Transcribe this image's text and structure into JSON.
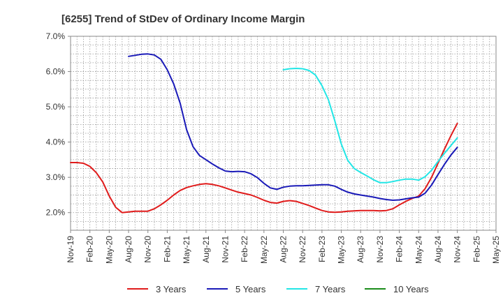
{
  "chart_data": {
    "type": "line",
    "title": "[6255]  Trend of StDev of Ordinary Income Margin",
    "xlabel": "",
    "ylabel": "",
    "x_range": [
      "2019-11",
      "2025-05"
    ],
    "ylim": [
      1.5,
      7.0
    ],
    "y_ticks": [
      "2.0%",
      "3.0%",
      "4.0%",
      "5.0%",
      "6.0%",
      "7.0%"
    ],
    "y_tick_values": [
      2.0,
      3.0,
      4.0,
      5.0,
      6.0,
      7.0
    ],
    "x_ticks": [
      "Nov-19",
      "Feb-20",
      "May-20",
      "Aug-20",
      "Nov-20",
      "Feb-21",
      "May-21",
      "Aug-21",
      "Nov-21",
      "Feb-22",
      "May-22",
      "Aug-22",
      "Nov-22",
      "Feb-23",
      "May-23",
      "Aug-23",
      "Nov-23",
      "Feb-24",
      "May-24",
      "Aug-24",
      "Nov-24",
      "Feb-25",
      "May-25"
    ],
    "grid": true,
    "legend_position": "bottom",
    "series": [
      {
        "name": "3 Years",
        "color": "#e01b1b",
        "points": [
          [
            "2019-11",
            3.42
          ],
          [
            "2019-12",
            3.42
          ],
          [
            "2020-01",
            3.4
          ],
          [
            "2020-02",
            3.31
          ],
          [
            "2020-03",
            3.13
          ],
          [
            "2020-04",
            2.87
          ],
          [
            "2020-05",
            2.47
          ],
          [
            "2020-06",
            2.15
          ],
          [
            "2020-07",
            2.0
          ],
          [
            "2020-08",
            2.02
          ],
          [
            "2020-09",
            2.04
          ],
          [
            "2020-10",
            2.04
          ],
          [
            "2020-11",
            2.04
          ],
          [
            "2020-12",
            2.11
          ],
          [
            "2021-01",
            2.22
          ],
          [
            "2021-02",
            2.35
          ],
          [
            "2021-03",
            2.5
          ],
          [
            "2021-04",
            2.63
          ],
          [
            "2021-05",
            2.71
          ],
          [
            "2021-06",
            2.76
          ],
          [
            "2021-07",
            2.8
          ],
          [
            "2021-08",
            2.82
          ],
          [
            "2021-09",
            2.8
          ],
          [
            "2021-10",
            2.76
          ],
          [
            "2021-11",
            2.7
          ],
          [
            "2021-12",
            2.64
          ],
          [
            "2022-01",
            2.58
          ],
          [
            "2022-02",
            2.54
          ],
          [
            "2022-03",
            2.5
          ],
          [
            "2022-04",
            2.43
          ],
          [
            "2022-05",
            2.35
          ],
          [
            "2022-06",
            2.29
          ],
          [
            "2022-07",
            2.27
          ],
          [
            "2022-08",
            2.32
          ],
          [
            "2022-09",
            2.34
          ],
          [
            "2022-10",
            2.32
          ],
          [
            "2022-11",
            2.26
          ],
          [
            "2022-12",
            2.2
          ],
          [
            "2023-01",
            2.13
          ],
          [
            "2023-02",
            2.06
          ],
          [
            "2023-03",
            2.02
          ],
          [
            "2023-04",
            2.01
          ],
          [
            "2023-05",
            2.02
          ],
          [
            "2023-06",
            2.04
          ],
          [
            "2023-07",
            2.05
          ],
          [
            "2023-08",
            2.06
          ],
          [
            "2023-09",
            2.06
          ],
          [
            "2023-10",
            2.06
          ],
          [
            "2023-11",
            2.05
          ],
          [
            "2023-12",
            2.06
          ],
          [
            "2024-01",
            2.11
          ],
          [
            "2024-02",
            2.22
          ],
          [
            "2024-03",
            2.32
          ],
          [
            "2024-04",
            2.4
          ],
          [
            "2024-05",
            2.47
          ],
          [
            "2024-06",
            2.68
          ],
          [
            "2024-07",
            3.0
          ],
          [
            "2024-08",
            3.4
          ],
          [
            "2024-09",
            3.8
          ],
          [
            "2024-10",
            4.18
          ],
          [
            "2024-11",
            4.53
          ]
        ]
      },
      {
        "name": "5 Years",
        "color": "#1a1ab8",
        "points": [
          [
            "2020-08",
            6.43
          ],
          [
            "2020-09",
            6.46
          ],
          [
            "2020-10",
            6.49
          ],
          [
            "2020-11",
            6.5
          ],
          [
            "2020-12",
            6.47
          ],
          [
            "2021-01",
            6.35
          ],
          [
            "2021-02",
            6.05
          ],
          [
            "2021-03",
            5.65
          ],
          [
            "2021-04",
            5.1
          ],
          [
            "2021-05",
            4.35
          ],
          [
            "2021-06",
            3.87
          ],
          [
            "2021-07",
            3.62
          ],
          [
            "2021-08",
            3.5
          ],
          [
            "2021-09",
            3.38
          ],
          [
            "2021-10",
            3.27
          ],
          [
            "2021-11",
            3.18
          ],
          [
            "2021-12",
            3.16
          ],
          [
            "2022-01",
            3.17
          ],
          [
            "2022-02",
            3.16
          ],
          [
            "2022-03",
            3.1
          ],
          [
            "2022-04",
            2.99
          ],
          [
            "2022-05",
            2.83
          ],
          [
            "2022-06",
            2.7
          ],
          [
            "2022-07",
            2.66
          ],
          [
            "2022-08",
            2.72
          ],
          [
            "2022-09",
            2.75
          ],
          [
            "2022-10",
            2.76
          ],
          [
            "2022-11",
            2.76
          ],
          [
            "2022-12",
            2.77
          ],
          [
            "2023-01",
            2.78
          ],
          [
            "2023-02",
            2.79
          ],
          [
            "2023-03",
            2.79
          ],
          [
            "2023-04",
            2.75
          ],
          [
            "2023-05",
            2.66
          ],
          [
            "2023-06",
            2.58
          ],
          [
            "2023-07",
            2.53
          ],
          [
            "2023-08",
            2.5
          ],
          [
            "2023-09",
            2.47
          ],
          [
            "2023-10",
            2.44
          ],
          [
            "2023-11",
            2.4
          ],
          [
            "2023-12",
            2.37
          ],
          [
            "2024-01",
            2.35
          ],
          [
            "2024-02",
            2.36
          ],
          [
            "2024-03",
            2.39
          ],
          [
            "2024-04",
            2.42
          ],
          [
            "2024-05",
            2.44
          ],
          [
            "2024-06",
            2.55
          ],
          [
            "2024-07",
            2.78
          ],
          [
            "2024-08",
            3.08
          ],
          [
            "2024-09",
            3.37
          ],
          [
            "2024-10",
            3.63
          ],
          [
            "2024-11",
            3.85
          ]
        ]
      },
      {
        "name": "7 Years",
        "color": "#22e6e6",
        "points": [
          [
            "2022-08",
            6.05
          ],
          [
            "2022-09",
            6.08
          ],
          [
            "2022-10",
            6.09
          ],
          [
            "2022-11",
            6.08
          ],
          [
            "2022-12",
            6.03
          ],
          [
            "2023-01",
            5.9
          ],
          [
            "2023-02",
            5.6
          ],
          [
            "2023-03",
            5.2
          ],
          [
            "2023-04",
            4.6
          ],
          [
            "2023-05",
            3.95
          ],
          [
            "2023-06",
            3.48
          ],
          [
            "2023-07",
            3.25
          ],
          [
            "2023-08",
            3.14
          ],
          [
            "2023-09",
            3.04
          ],
          [
            "2023-10",
            2.93
          ],
          [
            "2023-11",
            2.85
          ],
          [
            "2023-12",
            2.85
          ],
          [
            "2024-01",
            2.88
          ],
          [
            "2024-02",
            2.92
          ],
          [
            "2024-03",
            2.95
          ],
          [
            "2024-04",
            2.95
          ],
          [
            "2024-05",
            2.92
          ],
          [
            "2024-06",
            3.02
          ],
          [
            "2024-07",
            3.2
          ],
          [
            "2024-08",
            3.45
          ],
          [
            "2024-09",
            3.68
          ],
          [
            "2024-10",
            3.9
          ],
          [
            "2024-11",
            4.12
          ]
        ]
      },
      {
        "name": "10 Years",
        "color": "#1a8c1a",
        "points": []
      }
    ]
  }
}
